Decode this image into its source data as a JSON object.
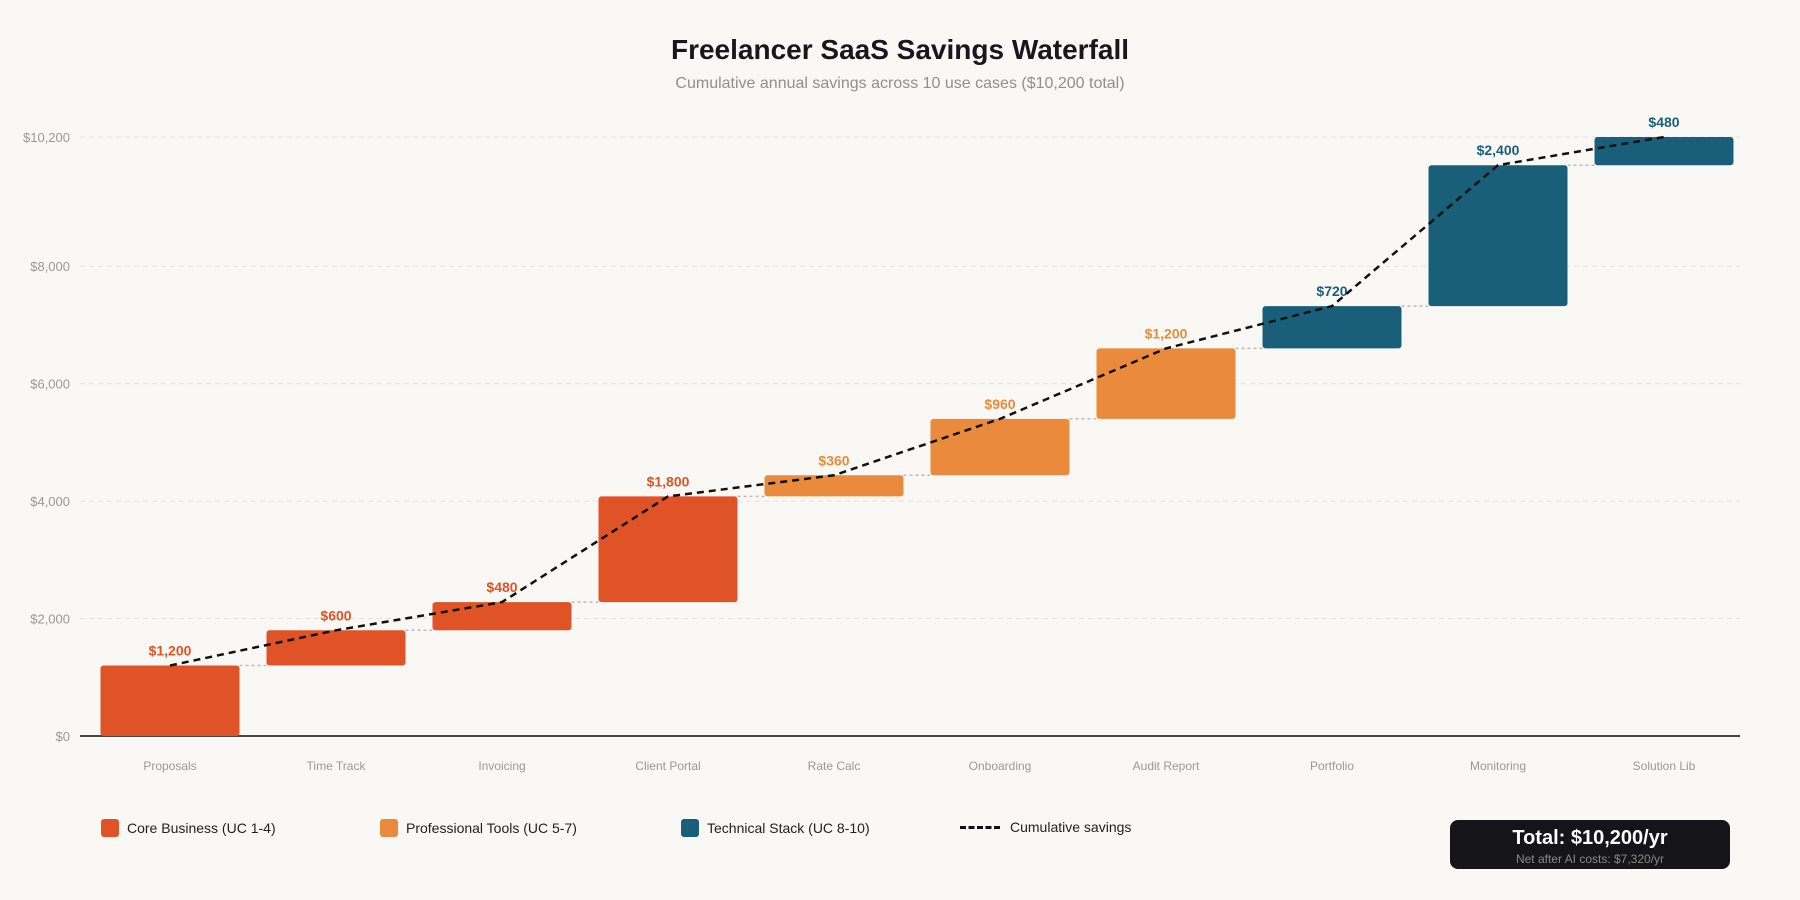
{
  "chart_data": {
    "type": "waterfall",
    "title": "Freelancer SaaS Savings Waterfall",
    "subtitle": "Cumulative annual savings across 10 use cases ($10,200 total)",
    "categories": [
      "Proposals",
      "Time Track",
      "Invoicing",
      "Client Portal",
      "Rate Calc",
      "Onboarding",
      "Audit Report",
      "Portfolio",
      "Monitoring",
      "Solution Lib"
    ],
    "values": [
      1200,
      600,
      480,
      1800,
      360,
      960,
      1200,
      720,
      2400,
      480
    ],
    "value_labels": [
      "$1,200",
      "$600",
      "$480",
      "$1,800",
      "$360",
      "$960",
      "$1,200",
      "$720",
      "$2,400",
      "$480"
    ],
    "groups": [
      "core",
      "core",
      "core",
      "core",
      "professional",
      "professional",
      "professional",
      "technical",
      "technical",
      "technical"
    ],
    "ylim": [
      0,
      10200
    ],
    "yticks": [
      0,
      2000,
      4000,
      6000,
      8000,
      10200
    ],
    "ytick_labels": [
      "$0",
      "$2,000",
      "$4,000",
      "$6,000",
      "$8,000",
      "$10,200"
    ],
    "grid": true,
    "legend_placement": "bottom",
    "line_series": "Cumulative savings",
    "colors": {
      "core": "#E05326",
      "professional": "#EA8A3C",
      "technical": "#1A5F7A",
      "line": "#111111"
    }
  },
  "legend": [
    {
      "label": "Core Business (UC 1-4)",
      "group": "core"
    },
    {
      "label": "Professional Tools (UC 5-7)",
      "group": "professional"
    },
    {
      "label": "Technical Stack (UC 8-10)",
      "group": "technical"
    },
    {
      "label": "Cumulative savings",
      "group": "line"
    }
  ],
  "total_box": {
    "title": "Total: $10,200/yr",
    "subtitle": "Net after AI costs: $7,320/yr"
  }
}
